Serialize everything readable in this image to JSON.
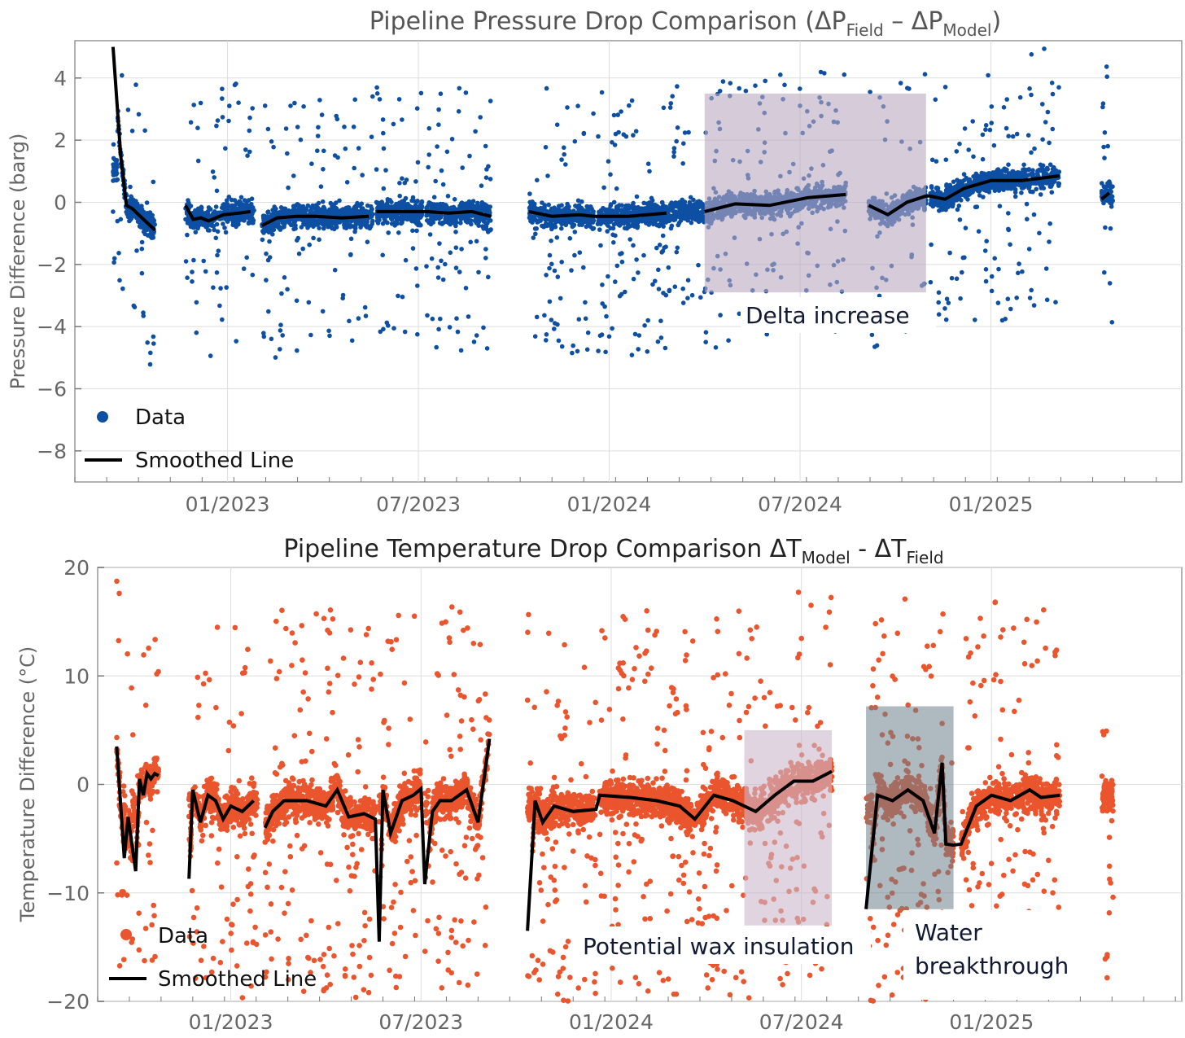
{
  "chart_data": [
    {
      "type": "scatter",
      "title_main": "Pipeline Pressure Drop Comparison (ΔP",
      "title_sub1": "Field",
      "title_mid": " – ΔP",
      "title_sub2": "Model",
      "title_end": ")",
      "ylabel": "Pressure Difference (barg)",
      "xlabel": "",
      "ylim": [
        -9,
        5.2
      ],
      "xlim": [
        2022.6,
        2025.5
      ],
      "yticks": [
        -8,
        -6,
        -4,
        -2,
        0,
        2,
        4
      ],
      "ytick_labels": [
        "−8",
        "−6",
        "−4",
        "−2",
        "0",
        "2",
        "4"
      ],
      "xticks": [
        2023.0,
        2023.5,
        2024.0,
        2024.5,
        2025.0
      ],
      "xtick_labels": [
        "01/2023",
        "07/2023",
        "01/2024",
        "07/2024",
        "01/2025"
      ],
      "color": "#0d4fa3",
      "legend": [
        "Data",
        "Smoothed Line"
      ],
      "annotation": "Delta increase",
      "highlight_range": [
        2024.25,
        2024.83
      ],
      "highlight_y": [
        -2.9,
        3.5
      ],
      "segments": [
        [
          2022.7,
          2022.81
        ],
        [
          2022.89,
          2023.07
        ],
        [
          2023.09,
          2023.38
        ],
        [
          2023.39,
          2023.51
        ],
        [
          2023.52,
          2023.69
        ],
        [
          2023.79,
          2023.96
        ],
        [
          2023.97,
          2024.25
        ],
        [
          2024.25,
          2024.62
        ],
        [
          2024.68,
          2024.83
        ],
        [
          2024.84,
          2025.18
        ],
        [
          2025.29,
          2025.32
        ]
      ],
      "smoothed_x": [
        2022.7,
        2022.72,
        2022.735,
        2022.75,
        2022.78,
        2022.81,
        2022.89,
        2022.91,
        2022.93,
        2022.95,
        2022.99,
        2023.03,
        2023.06,
        2023.09,
        2023.13,
        2023.18,
        2023.23,
        2023.3,
        2023.37,
        2023.39,
        2023.44,
        2023.51,
        2023.52,
        2023.58,
        2023.64,
        2023.69,
        2023.79,
        2023.85,
        2023.92,
        2023.96,
        2023.97,
        2024.05,
        2024.15,
        2024.25,
        2024.33,
        2024.42,
        2024.52,
        2024.62,
        2024.68,
        2024.73,
        2024.78,
        2024.83,
        2024.84,
        2024.88,
        2024.93,
        2025.0,
        2025.08,
        2025.18,
        2025.29,
        2025.31
      ],
      "smoothed_y": [
        5.0,
        1.5,
        -0.1,
        -0.2,
        -0.55,
        -0.9,
        -0.1,
        -0.55,
        -0.5,
        -0.6,
        -0.4,
        -0.35,
        -0.3,
        -0.75,
        -0.5,
        -0.45,
        -0.45,
        -0.5,
        -0.45,
        -0.3,
        -0.3,
        -0.3,
        -0.3,
        -0.35,
        -0.3,
        -0.45,
        -0.3,
        -0.45,
        -0.4,
        -0.45,
        -0.45,
        -0.45,
        -0.35,
        -0.3,
        -0.05,
        -0.1,
        0.15,
        0.25,
        -0.1,
        -0.4,
        0.0,
        0.2,
        0.2,
        0.1,
        0.45,
        0.7,
        0.7,
        0.85,
        0.1,
        0.3
      ]
    },
    {
      "type": "scatter",
      "title_main": "Pipeline Temperature Drop Comparison ΔT",
      "title_sub1": "Model",
      "title_mid": " - ΔT",
      "title_sub2": "Field",
      "title_end": "",
      "ylabel": "Temperature Difference (°C)",
      "xlabel": "",
      "ylim": [
        -20,
        20
      ],
      "xlim": [
        2022.65,
        2025.5
      ],
      "yticks": [
        -20,
        -10,
        0,
        10,
        20
      ],
      "ytick_labels": [
        "−20",
        "−10",
        "0",
        "10",
        "20"
      ],
      "xticks": [
        2023.0,
        2023.5,
        2024.0,
        2024.5,
        2025.0
      ],
      "xtick_labels": [
        "01/2023",
        "07/2023",
        "01/2024",
        "07/2024",
        "01/2025"
      ],
      "color": "#ea552d",
      "legend": [
        "Data",
        "Smoothed Line"
      ],
      "annotations": [
        "Potential wax insulation",
        "Water",
        "breakthrough"
      ],
      "highlight_wax": [
        2024.35,
        2024.58,
        -13,
        5
      ],
      "highlight_water": [
        2024.67,
        2024.9,
        -11.5,
        7.2
      ],
      "segments": [
        [
          2022.7,
          2022.81
        ],
        [
          2022.89,
          2023.07
        ],
        [
          2023.09,
          2023.38
        ],
        [
          2023.39,
          2023.5
        ],
        [
          2023.51,
          2023.68
        ],
        [
          2023.78,
          2023.96
        ],
        [
          2023.97,
          2024.58
        ],
        [
          2024.67,
          2024.9
        ],
        [
          2024.92,
          2025.18
        ],
        [
          2025.29,
          2025.32
        ]
      ],
      "smoothed_x": [
        2022.7,
        2022.72,
        2022.73,
        2022.75,
        2022.76,
        2022.77,
        2022.78,
        2022.79,
        2022.8,
        2022.81,
        2022.89,
        2022.9,
        2022.92,
        2022.94,
        2022.96,
        2022.98,
        2023.0,
        2023.03,
        2023.06,
        2023.09,
        2023.11,
        2023.14,
        2023.2,
        2023.25,
        2023.28,
        2023.31,
        2023.35,
        2023.38,
        2023.39,
        2023.4,
        2023.42,
        2023.45,
        2023.48,
        2023.5,
        2023.51,
        2023.53,
        2023.55,
        2023.58,
        2023.62,
        2023.65,
        2023.68,
        2023.78,
        2023.8,
        2023.82,
        2023.85,
        2023.9,
        2023.96,
        2023.97,
        2024.05,
        2024.12,
        2024.18,
        2024.22,
        2024.27,
        2024.32,
        2024.38,
        2024.43,
        2024.48,
        2024.53,
        2024.58,
        2024.67,
        2024.7,
        2024.74,
        2024.78,
        2024.82,
        2024.85,
        2024.87,
        2024.88,
        2024.9,
        2024.92,
        2024.96,
        2025.0,
        2025.05,
        2025.1,
        2025.13,
        2025.18
      ],
      "smoothed_y": [
        3.5,
        -6.8,
        -3.0,
        -8.0,
        0.5,
        -1.0,
        1.0,
        0.5,
        1.0,
        0.8,
        -8.7,
        -0.5,
        -3.5,
        -1.0,
        -1.5,
        -3.2,
        -2.0,
        -2.5,
        -1.5,
        -4.0,
        -2.5,
        -1.5,
        -1.5,
        -2.0,
        -0.5,
        -3.0,
        -2.7,
        -3.2,
        -14.5,
        -0.5,
        -4.5,
        -1.5,
        -1.0,
        -0.4,
        -9.2,
        -2.5,
        -1.5,
        -1.5,
        -0.5,
        -3.5,
        4.2,
        -13.5,
        -1.5,
        -3.5,
        -2.0,
        -2.5,
        -2.3,
        -1.0,
        -1.2,
        -1.5,
        -2.0,
        -3.2,
        -1.0,
        -1.5,
        -2.5,
        -1.0,
        0.3,
        0.3,
        1.2,
        -11.5,
        -1.0,
        -1.5,
        -0.5,
        -1.5,
        -4.5,
        2.0,
        -5.5,
        -5.6,
        -5.5,
        -2.0,
        -1.0,
        -1.5,
        -0.5,
        -1.2,
        -1.0
      ]
    }
  ]
}
